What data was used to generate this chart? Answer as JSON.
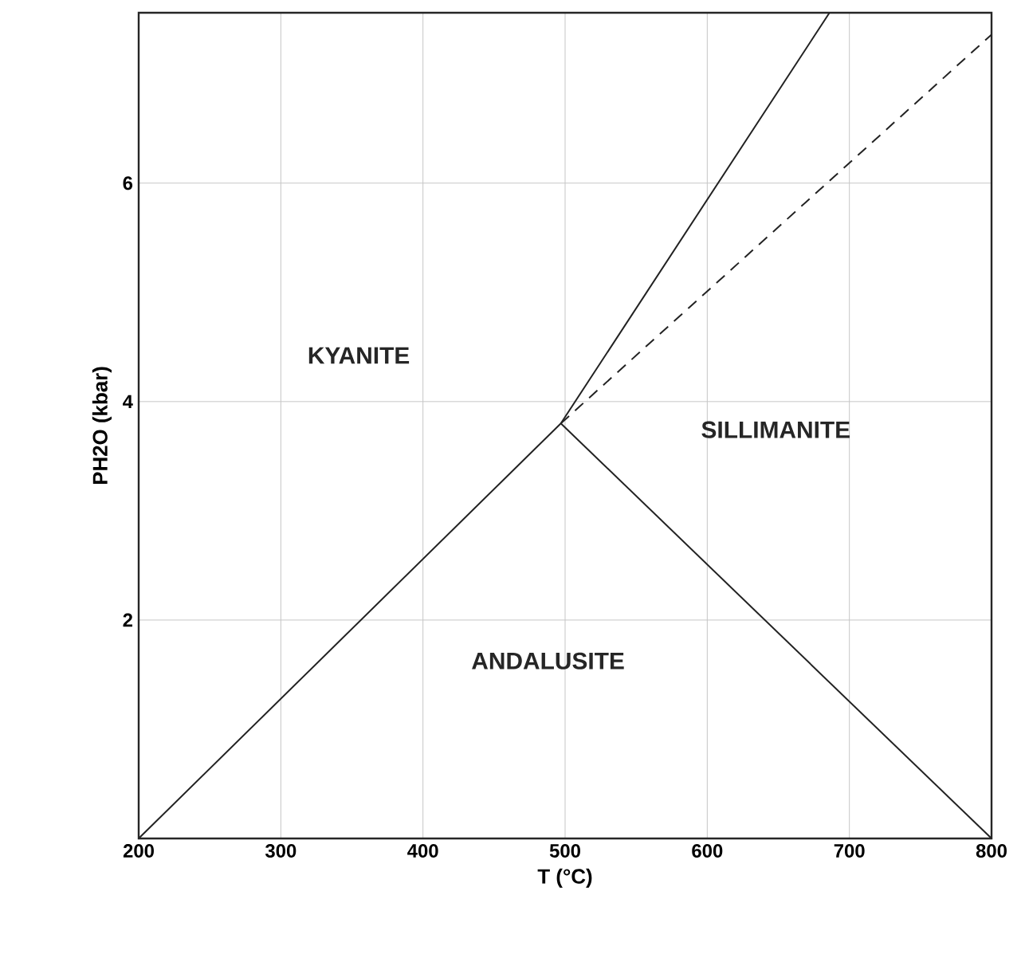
{
  "chart_data": {
    "type": "line",
    "xlabel": "T (°C)",
    "ylabel": "PH2O (kbar)",
    "xlim": [
      200,
      800
    ],
    "ylim": [
      0,
      7.56
    ],
    "xticks": [
      200,
      300,
      400,
      500,
      600,
      700,
      800
    ],
    "yticks": [
      2,
      4,
      6
    ],
    "grid": true,
    "marker": "none",
    "series": [
      {
        "color": "#222222",
        "line_style": "solid",
        "x": [
          200,
          497,
          686
        ],
        "values": [
          0,
          3.8,
          7.56
        ]
      },
      {
        "color": "#222222",
        "line_style": "solid",
        "x": [
          497,
          800
        ],
        "values": [
          3.8,
          0
        ]
      },
      {
        "color": "#222222",
        "line_style": "dashed",
        "x": [
          497,
          800
        ],
        "values": [
          3.8,
          7.36
        ]
      }
    ],
    "annotations": [
      "KYANITE",
      "SILLIMANITE",
      "ANDALUSITE"
    ]
  }
}
